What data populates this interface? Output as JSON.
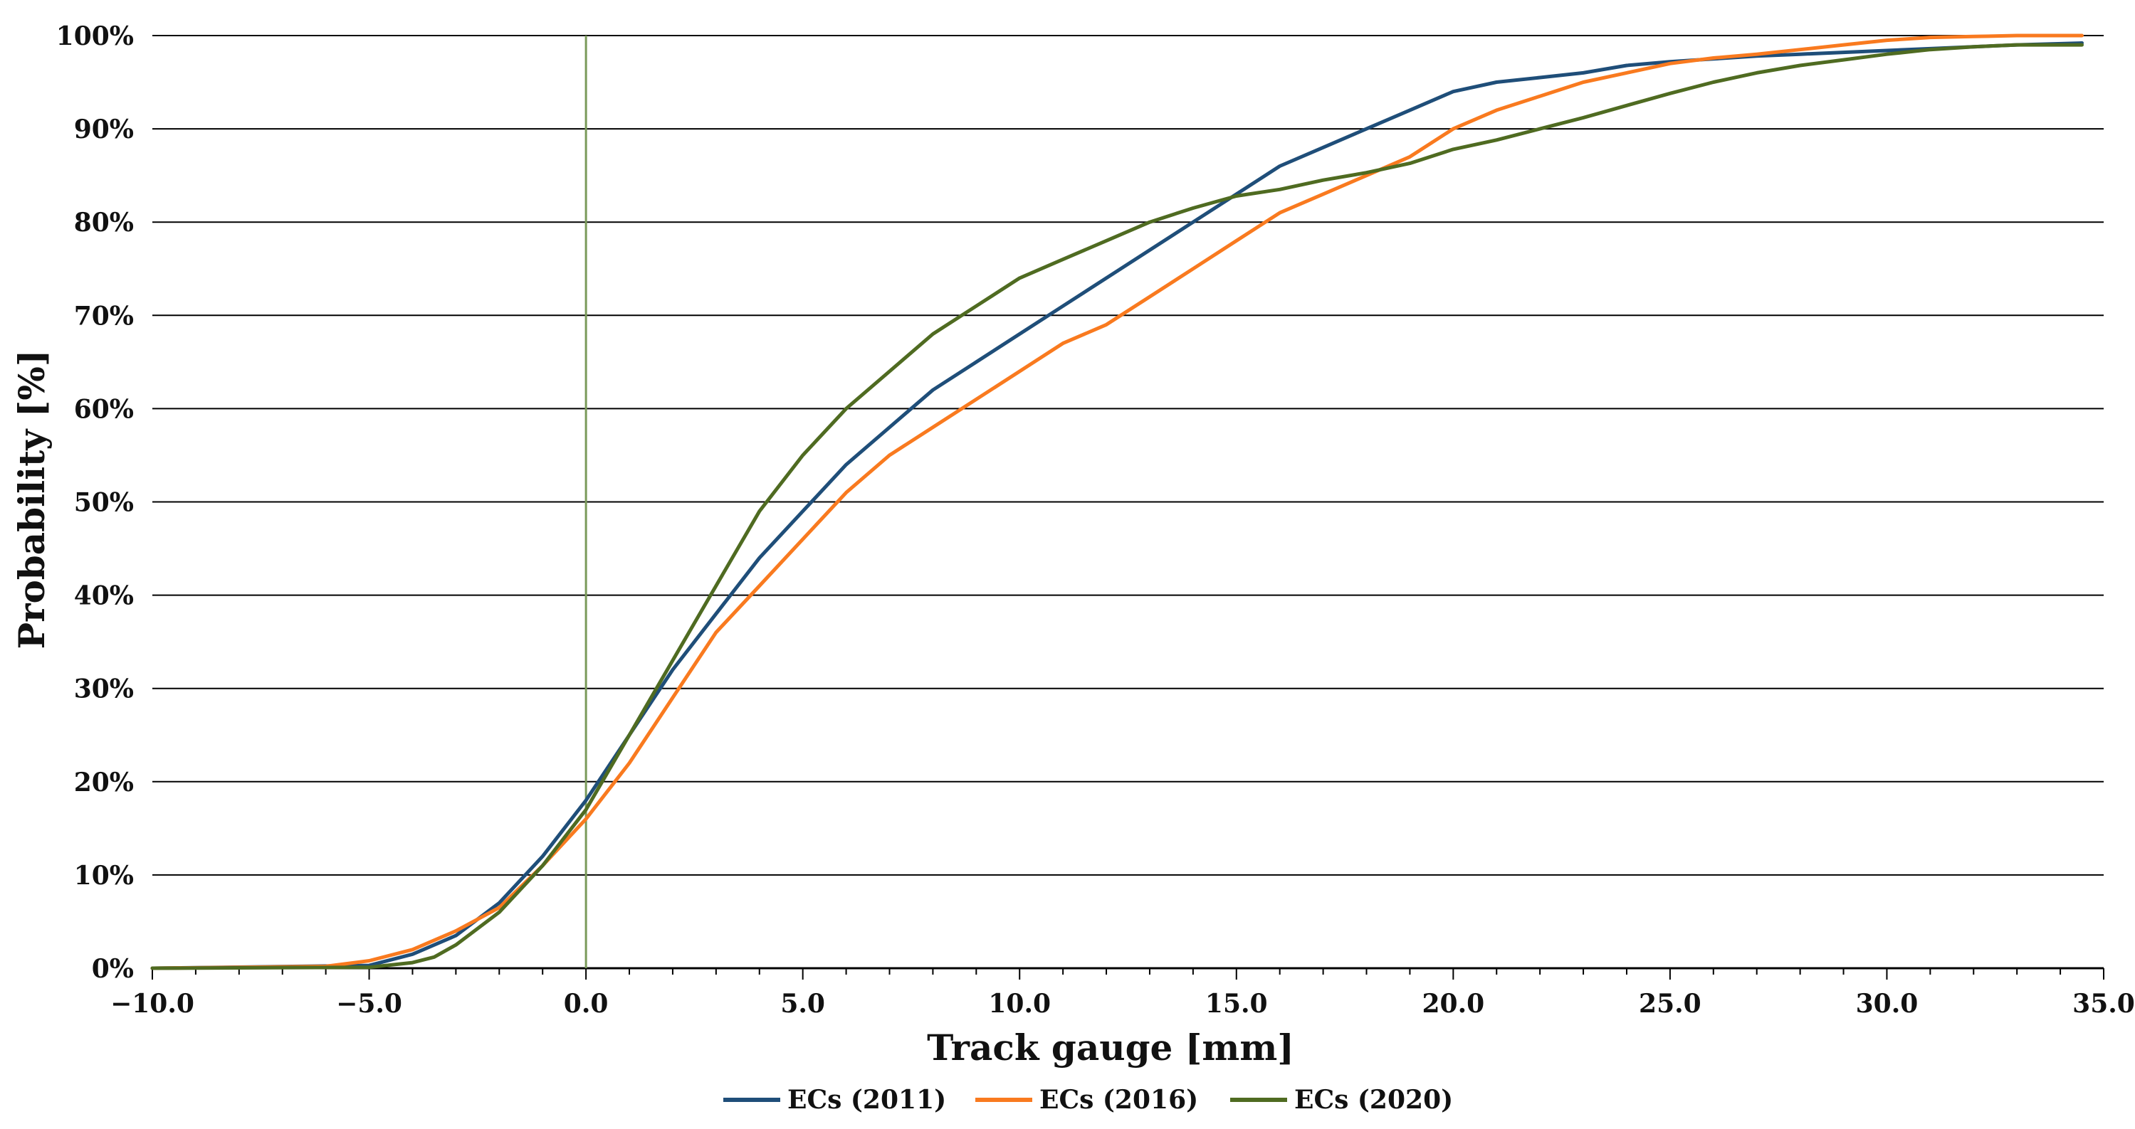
{
  "chart_data": {
    "type": "line",
    "title": "",
    "xlabel": "Track gauge [mm]",
    "ylabel": "Probability [%]",
    "xlim": [
      -10,
      35
    ],
    "ylim": [
      0,
      100
    ],
    "xticks": [
      -10,
      -5,
      0,
      5,
      10,
      15,
      20,
      25,
      30,
      35
    ],
    "xtick_labels": [
      "−10.0",
      "−5.0",
      "0.0",
      "5.0",
      "10.0",
      "15.0",
      "20.0",
      "25.0",
      "30.0",
      "35.0"
    ],
    "yticks": [
      0,
      10,
      20,
      30,
      40,
      50,
      60,
      70,
      80,
      90,
      100
    ],
    "ytick_labels": [
      "0%",
      "10%",
      "20%",
      "30%",
      "40%",
      "50%",
      "60%",
      "70%",
      "80%",
      "90%",
      "100%"
    ],
    "grid": "horizontal",
    "reference_line_x": 0,
    "legend_position": "bottom",
    "colors": {
      "ref_line": "#7a9a5a",
      "grid": "#000000"
    },
    "series": [
      {
        "name": "ECs (2011)",
        "color": "#1f4e79",
        "x": [
          -10,
          -5,
          -4,
          -3,
          -2,
          -1,
          0,
          1,
          2,
          3,
          4,
          5,
          6,
          7,
          8,
          9,
          10,
          11,
          12,
          13,
          14,
          15,
          16,
          17,
          18,
          19,
          20,
          21,
          22,
          23,
          24,
          25,
          26,
          27,
          28,
          29,
          30,
          31,
          32,
          33,
          34.5
        ],
        "y": [
          0,
          0.3,
          1.5,
          3.5,
          7,
          12,
          18,
          25,
          32,
          38,
          44,
          49,
          54,
          58,
          62,
          65,
          68,
          71,
          74,
          77,
          80,
          83,
          86,
          88,
          90,
          92,
          94,
          95,
          95.5,
          96,
          96.8,
          97.2,
          97.5,
          97.8,
          98,
          98.2,
          98.4,
          98.6,
          98.8,
          99,
          99.2
        ]
      },
      {
        "name": "ECs (2016)",
        "color": "#f97a1f",
        "x": [
          -10,
          -6,
          -5,
          -4,
          -3,
          -2,
          -1,
          0,
          1,
          2,
          3,
          4,
          5,
          6,
          7,
          8,
          9,
          10,
          11,
          12,
          13,
          14,
          15,
          16,
          17,
          18,
          19,
          20,
          21,
          22,
          23,
          24,
          25,
          26,
          27,
          28,
          29,
          30,
          31,
          32,
          33,
          34.5
        ],
        "y": [
          0,
          0.2,
          0.8,
          2,
          4,
          6.5,
          11,
          16,
          22,
          29,
          36,
          41,
          46,
          51,
          55,
          58,
          61,
          64,
          67,
          69,
          72,
          75,
          78,
          81,
          83,
          85,
          87,
          90,
          92,
          93.5,
          95,
          96,
          97,
          97.6,
          98,
          98.5,
          99,
          99.5,
          99.8,
          99.9,
          100,
          100
        ]
      },
      {
        "name": "ECs (2020)",
        "color": "#4f6b21",
        "x": [
          -10,
          -5,
          -4,
          -3.5,
          -3,
          -2,
          -1,
          0,
          1,
          2,
          3,
          4,
          5,
          6,
          7,
          8,
          9,
          10,
          11,
          12,
          13,
          14,
          15,
          16,
          17,
          18,
          19,
          20,
          21,
          22,
          23,
          24,
          25,
          26,
          27,
          28,
          29,
          30,
          31,
          32,
          33,
          34.5
        ],
        "y": [
          0,
          0.1,
          0.6,
          1.2,
          2.5,
          6,
          11,
          17,
          25,
          33,
          41,
          49,
          55,
          60,
          64,
          68,
          71,
          74,
          76,
          78,
          80,
          81.5,
          82.8,
          83.5,
          84.5,
          85.3,
          86.3,
          87.8,
          88.8,
          90,
          91.2,
          92.5,
          93.8,
          95,
          96,
          96.8,
          97.4,
          98,
          98.5,
          98.8,
          99,
          99
        ]
      }
    ]
  }
}
